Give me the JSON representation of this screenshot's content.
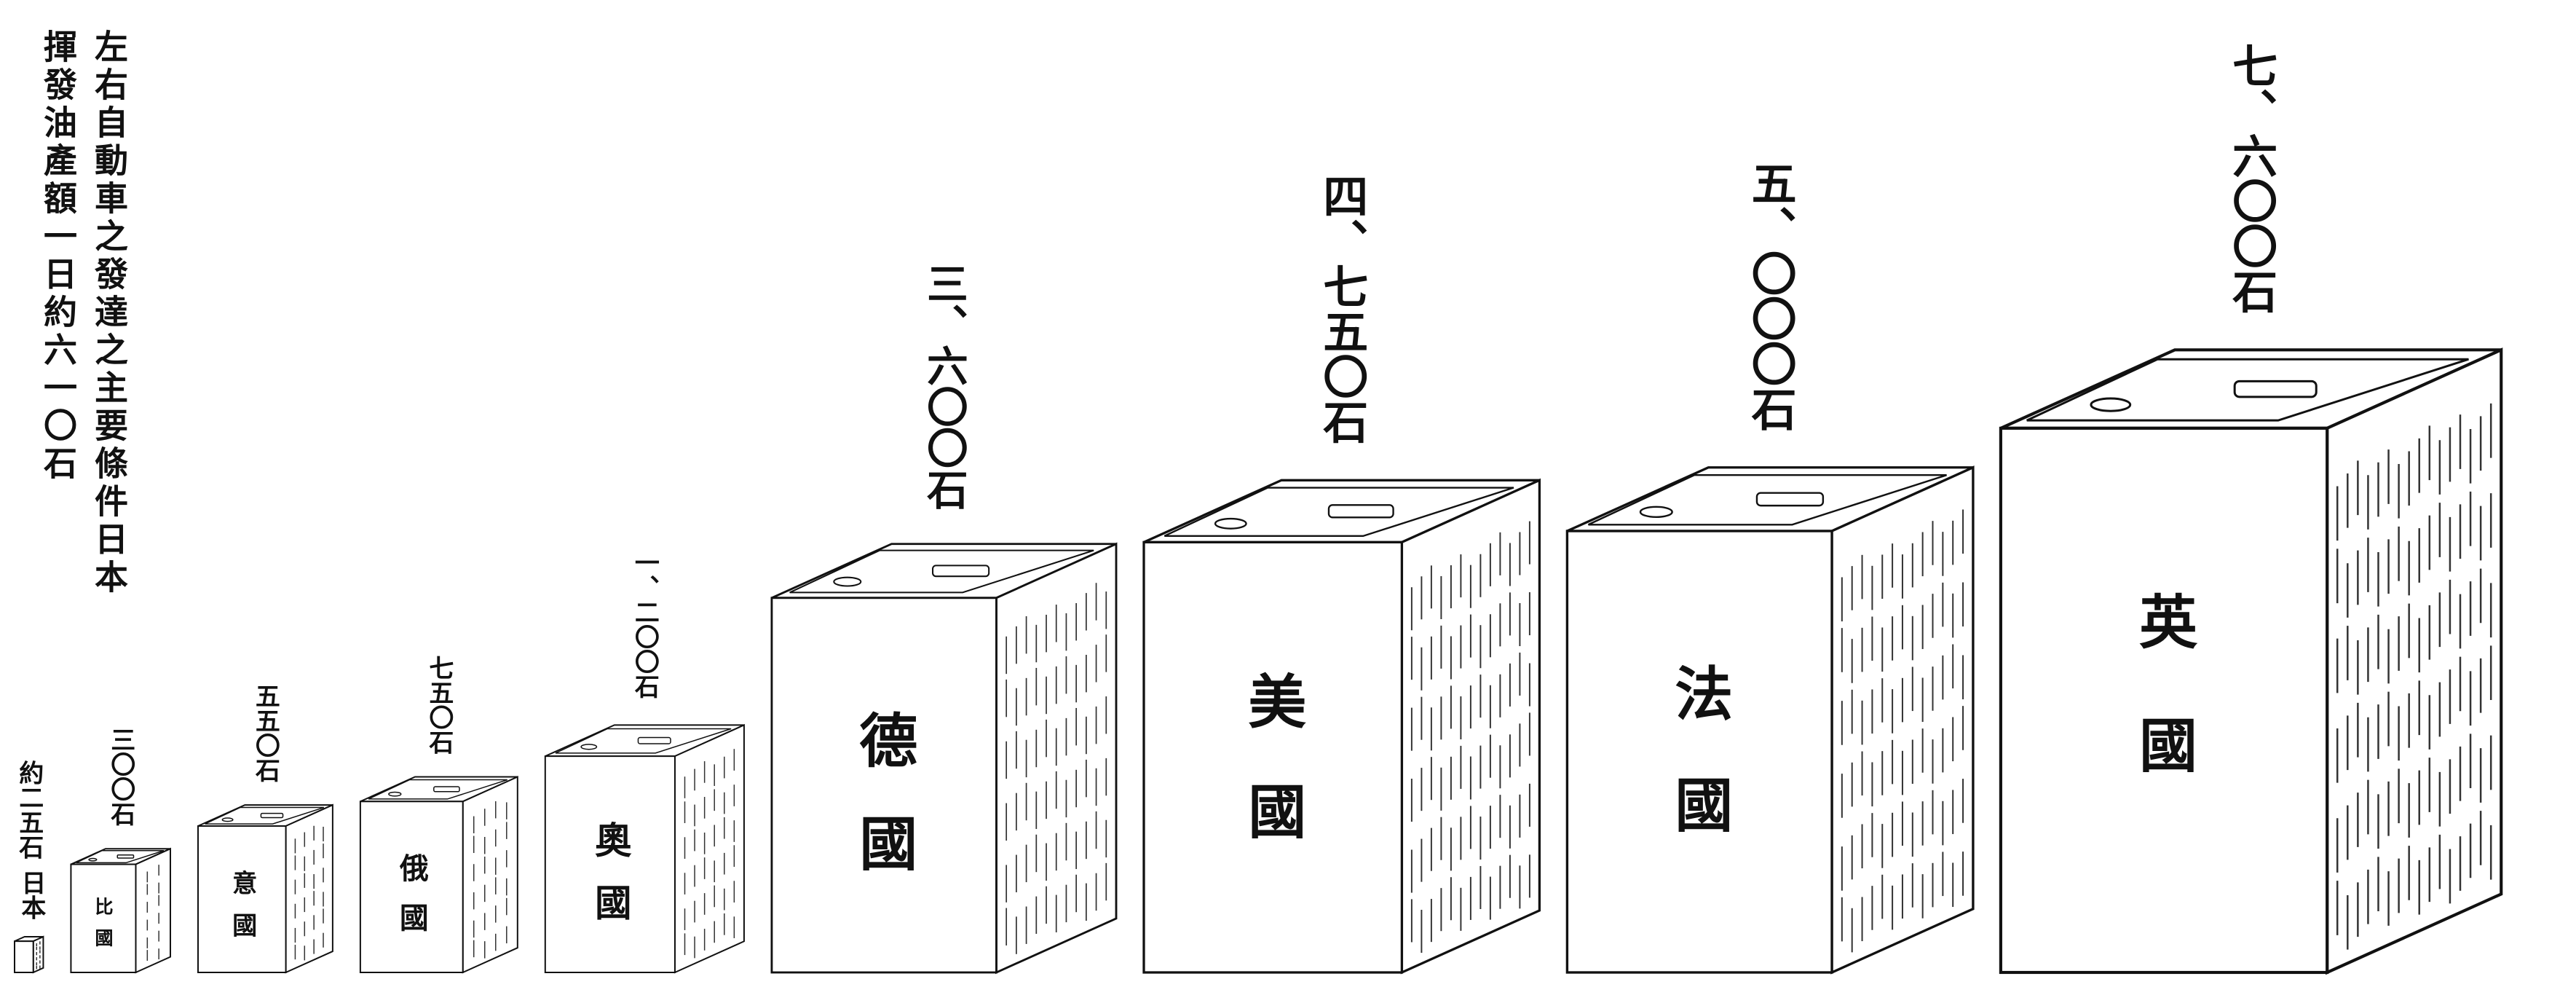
{
  "chart_data": {
    "type": "pictograph",
    "title": [
      "左右自動車之發達之主要條件日本",
      "揮發油產額一日約六一〇石"
    ],
    "categories": [
      "日本",
      "比國",
      "意國",
      "俄國",
      "奧國",
      "德國",
      "美國",
      "法國",
      "英國"
    ],
    "values": [
      25,
      300,
      550,
      750,
      1200,
      3600,
      4750,
      5000,
      7600
    ],
    "value_labels": [
      "約二五石",
      "三〇〇石",
      "五五〇石",
      "七五〇石",
      "一、二〇〇石",
      "三、六〇〇石",
      "四、七五〇石",
      "五、〇〇〇石",
      "七、六〇〇石"
    ],
    "color": "#ffffff"
  }
}
